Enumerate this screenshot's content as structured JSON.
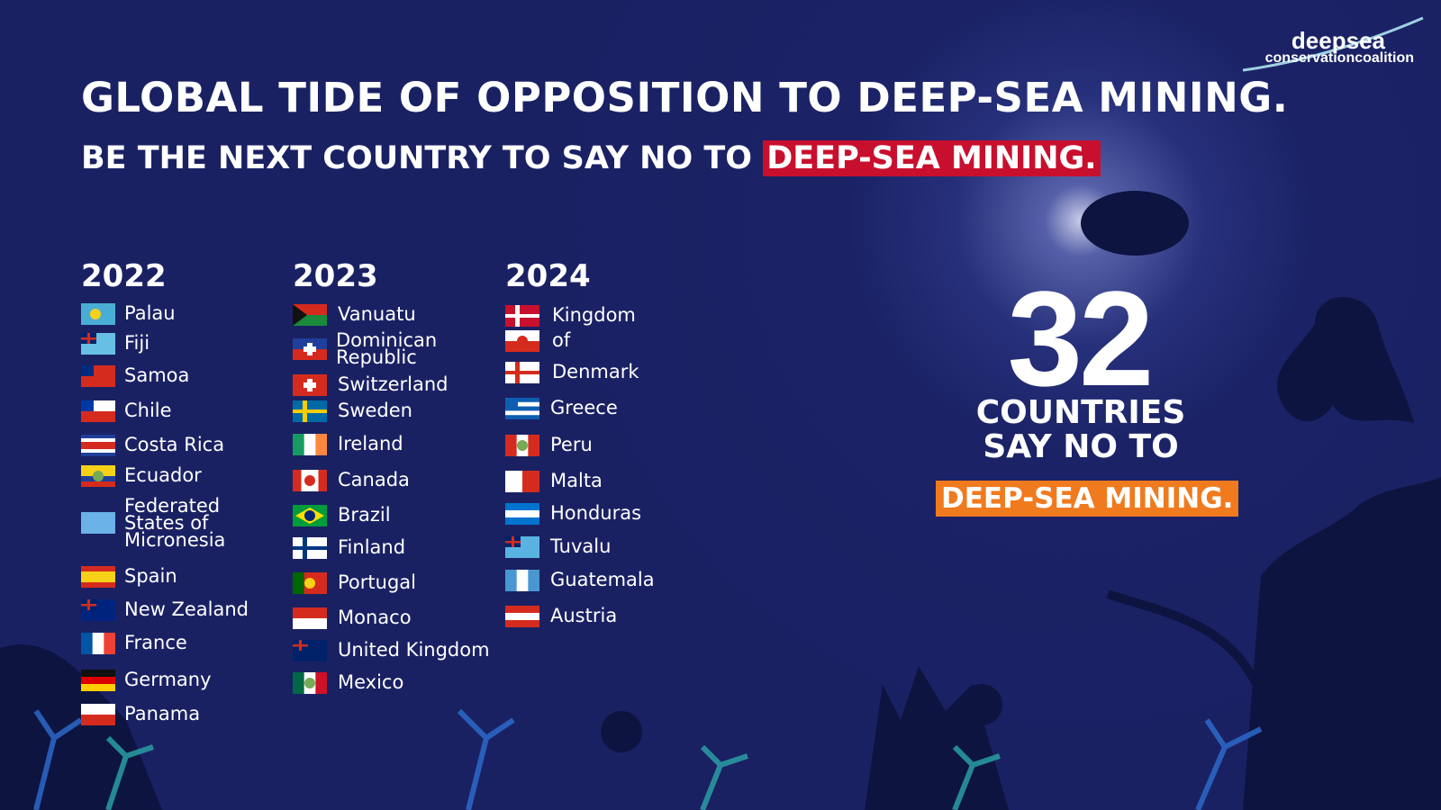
{
  "logo": {
    "line1": "deepsea",
    "line2": "conservationcoalition"
  },
  "header": {
    "title": "GLOBAL TIDE OF OPPOSITION TO DEEP-SEA MINING.",
    "subtitle": "BE THE NEXT COUNTRY TO SAY NO TO ",
    "subtitle_highlight": "DEEP-SEA MINING."
  },
  "columns": [
    {
      "year": "2022",
      "countries": [
        "Palau",
        "Fiji",
        "Samoa",
        "Chile",
        "Costa Rica",
        "Ecuador",
        [
          "Federated",
          "States of",
          "Micronesia"
        ],
        "Spain",
        "New Zealand",
        "France",
        "Germany",
        "Panama"
      ]
    },
    {
      "year": "2023",
      "countries": [
        "Vanuatu",
        [
          "Dominican",
          "Republic"
        ],
        "Switzerland",
        "Sweden",
        "Ireland",
        "Canada",
        "Brazil",
        "Finland",
        "Portugal",
        "Monaco",
        "United Kingdom",
        "Mexico"
      ]
    },
    {
      "year": "2024",
      "countries": [
        [
          "Kingdom",
          "of",
          "Denmark"
        ],
        "Greece",
        "Peru",
        "Malta",
        "Honduras",
        "Tuvalu",
        "Guatemala",
        "Austria"
      ]
    }
  ],
  "summary": {
    "count": 32,
    "line1": "COUNTRIES",
    "line2": "SAY NO TO",
    "highlight": "DEEP-SEA MINING."
  }
}
